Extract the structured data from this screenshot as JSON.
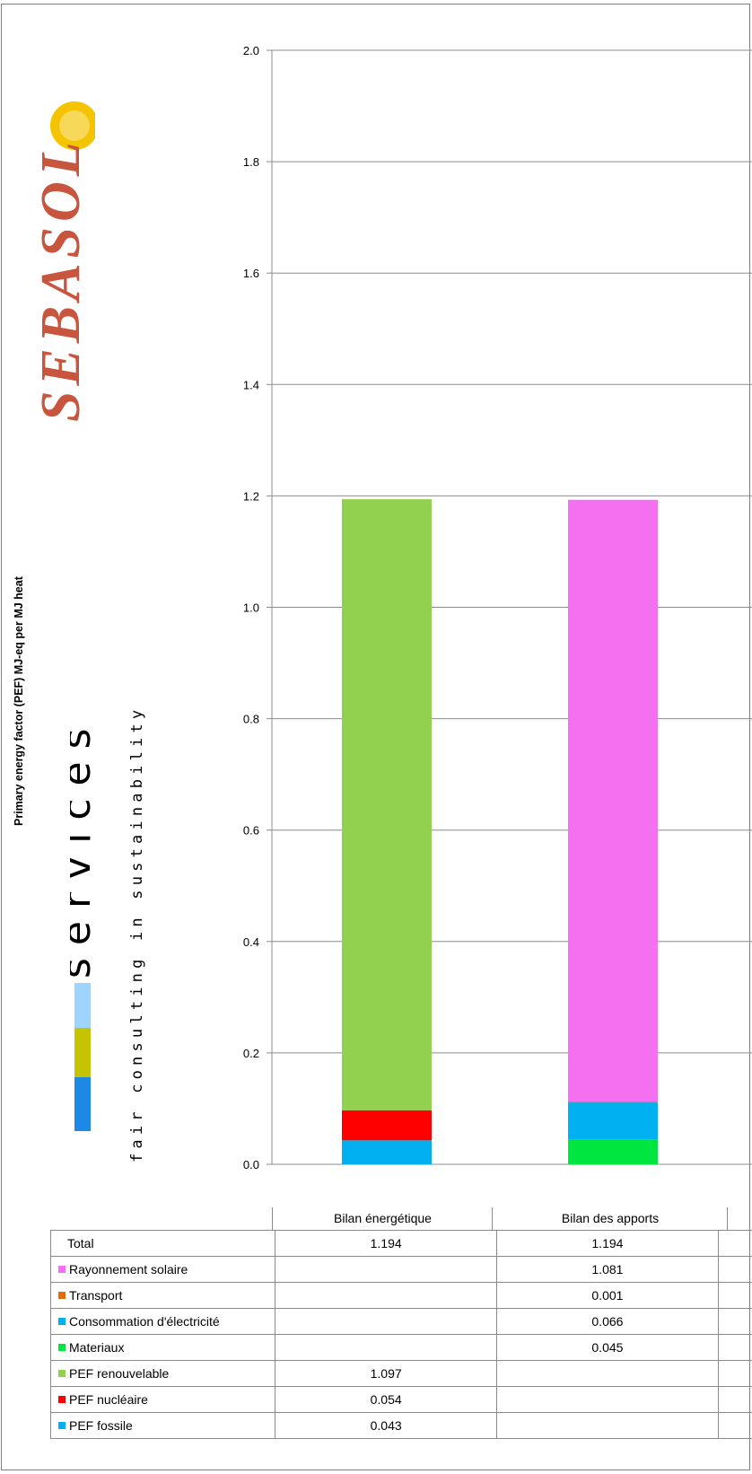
{
  "chart_data": {
    "type": "bar",
    "stacked": true,
    "ylabel": "Primary energy factor (PEF) MJ-eq per MJ heat",
    "ylim": [
      0,
      2.0
    ],
    "yticks": [
      "0.0",
      "0.2",
      "0.4",
      "0.6",
      "0.8",
      "1.0",
      "1.2",
      "1.4",
      "1.6",
      "1.8",
      "2.0"
    ],
    "grid": true,
    "categories": [
      "Bilan énergétique",
      "Bilan des apports"
    ],
    "series": [
      {
        "name": "PEF fossile",
        "color": "#00b0f0",
        "values": [
          0.043,
          null
        ]
      },
      {
        "name": "PEF nucléaire",
        "color": "#ff0000",
        "values": [
          0.054,
          null
        ]
      },
      {
        "name": "PEF renouvelable",
        "color": "#92d050",
        "values": [
          1.097,
          null
        ]
      },
      {
        "name": "Materiaux",
        "color": "#00e640",
        "values": [
          null,
          0.045
        ]
      },
      {
        "name": "Consommation d'électricité",
        "color": "#00b0f0",
        "values": [
          null,
          0.066
        ]
      },
      {
        "name": "Transport",
        "color": "#e46c0a",
        "values": [
          null,
          0.001
        ]
      },
      {
        "name": "Rayonnement solaire",
        "color": "#f570f0",
        "values": [
          null,
          1.081
        ]
      }
    ],
    "table": {
      "rows": [
        {
          "label": "Total",
          "swatch": null,
          "values": [
            "1.194",
            "1.194"
          ]
        },
        {
          "label": "Rayonnement solaire",
          "swatch": "#f570f0",
          "values": [
            "",
            "1.081"
          ]
        },
        {
          "label": "Transport",
          "swatch": "#e46c0a",
          "values": [
            "",
            "0.001"
          ]
        },
        {
          "label": "Consommation d'électricité",
          "swatch": "#00b0f0",
          "values": [
            "",
            "0.066"
          ]
        },
        {
          "label": "Materiaux",
          "swatch": "#00e640",
          "values": [
            "",
            "0.045"
          ]
        },
        {
          "label": "PEF renouvelable",
          "swatch": "#92d050",
          "values": [
            "1.097",
            ""
          ]
        },
        {
          "label": "PEF nucléaire",
          "swatch": "#ff0000",
          "values": [
            "0.054",
            ""
          ]
        },
        {
          "label": "PEF fossile",
          "swatch": "#00b0f0",
          "values": [
            "0.043",
            ""
          ]
        }
      ]
    }
  },
  "logos": {
    "sebasol": "SEBASOL",
    "esu_brand": "esu",
    "esu_word": "services",
    "esu_tagline": "fair consulting in sustainability"
  }
}
